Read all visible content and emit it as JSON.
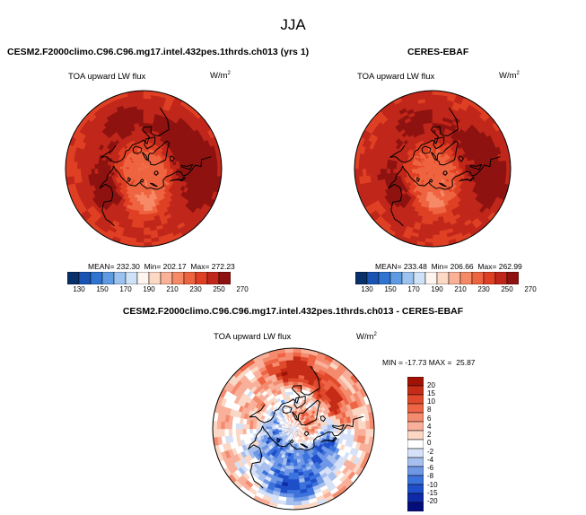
{
  "page": {
    "title": "JJA"
  },
  "colors": {
    "abs_scale": [
      "#08306b",
      "#1a54b3",
      "#2f74d0",
      "#5f9be3",
      "#9cc3ef",
      "#cfe2f8",
      "#fff5ee",
      "#fcd9c5",
      "#fbb195",
      "#f78a66",
      "#ef6440",
      "#df4024",
      "#c0271a",
      "#8e1210"
    ],
    "diff_scale": [
      "#050d7a",
      "#0e2aa6",
      "#1f4ec9",
      "#3c72dc",
      "#6e97e6",
      "#a6bfee",
      "#d6e1f7",
      "#ffffff",
      "#fbd7c6",
      "#f9b09a",
      "#f58b6e",
      "#ee6444",
      "#e04a2c",
      "#c52c17",
      "#a01206"
    ],
    "coastline": "#000000"
  },
  "chart_data": [
    {
      "type": "heatmap",
      "projection": "north-polar-stereographic",
      "title": "CESM2.F2000climo.C96.C96.mg17.intel.432pes.1thrds.ch013 (yrs 1)",
      "variable": "TOA upward LW flux",
      "units": {
        "base": "W/m",
        "exp": "2"
      },
      "stats": {
        "mean_label": "MEAN",
        "mean": "232.30",
        "min_label": "Min",
        "min": "202.17",
        "max_label": "Max",
        "max": "272.23"
      },
      "colorbar": {
        "ticks": [
          "130",
          "150",
          "170",
          "190",
          "210",
          "230",
          "250",
          "270"
        ],
        "range": [
          120,
          280
        ]
      },
      "field": {
        "pole": 212,
        "base_mid": 248,
        "outer": 238,
        "regions": [
          {
            "lon": 95,
            "lat": 62,
            "value": 207
          },
          {
            "lon": 45,
            "lat": 82,
            "value": 222
          },
          {
            "lon": 200,
            "lat": 78,
            "value": 226
          },
          {
            "lon": 150,
            "lat": 55,
            "value": 258
          },
          {
            "lon": 330,
            "lat": 50,
            "value": 262
          },
          {
            "lon": 250,
            "lat": 48,
            "value": 256
          },
          {
            "lon": 10,
            "lat": 40,
            "value": 266
          }
        ]
      }
    },
    {
      "type": "heatmap",
      "projection": "north-polar-stereographic",
      "title": "CERES-EBAF",
      "variable": "TOA upward LW flux",
      "units": {
        "base": "W/m",
        "exp": "2"
      },
      "stats": {
        "mean_label": "MEAN",
        "mean": "233.48",
        "min_label": "Min",
        "min": "206.66",
        "max_label": "Max",
        "max": "262.99"
      },
      "colorbar": {
        "ticks": [
          "130",
          "150",
          "170",
          "190",
          "210",
          "230",
          "250",
          "270"
        ],
        "range": [
          120,
          280
        ]
      },
      "field": {
        "pole": 214,
        "base_mid": 247,
        "outer": 239,
        "regions": [
          {
            "lon": 95,
            "lat": 62,
            "value": 210
          },
          {
            "lon": 45,
            "lat": 82,
            "value": 224
          },
          {
            "lon": 200,
            "lat": 78,
            "value": 228
          },
          {
            "lon": 150,
            "lat": 55,
            "value": 256
          },
          {
            "lon": 330,
            "lat": 50,
            "value": 258
          },
          {
            "lon": 250,
            "lat": 48,
            "value": 254
          },
          {
            "lon": 10,
            "lat": 40,
            "value": 260
          }
        ]
      }
    },
    {
      "type": "heatmap",
      "projection": "north-polar-stereographic",
      "title": "CESM2.F2000climo.C96.C96.mg17.intel.432pes.1thrds.ch013 - CERES-EBAF",
      "variable": "TOA upward LW flux",
      "units": {
        "base": "W/m",
        "exp": "2"
      },
      "stats": {
        "min_label": "MIN",
        "min": "-17.73",
        "max_label": "MAX",
        "max": "25.87"
      },
      "colorbar": {
        "ticks": [
          "20",
          "15",
          "10",
          "8",
          "6",
          "4",
          "2",
          "0",
          "-2",
          "-4",
          "-6",
          "-8",
          "-10",
          "-15",
          "-20"
        ],
        "levels": [
          -20,
          -15,
          -10,
          -8,
          -6,
          -4,
          -2,
          0,
          2,
          4,
          6,
          8,
          10,
          15,
          20
        ]
      },
      "field": {
        "pole": -4,
        "base_mid": -5,
        "outer": 3,
        "regions": [
          {
            "lon": 30,
            "lat": 62,
            "value": -11
          },
          {
            "lon": 140,
            "lat": 70,
            "value": -9
          },
          {
            "lon": 270,
            "lat": 45,
            "value": 14
          },
          {
            "lon": 320,
            "lat": 50,
            "value": 12
          },
          {
            "lon": 90,
            "lat": 45,
            "value": -12
          },
          {
            "lon": 210,
            "lat": 55,
            "value": 4
          },
          {
            "lon": 330,
            "lat": 75,
            "value": 6
          }
        ]
      }
    }
  ]
}
